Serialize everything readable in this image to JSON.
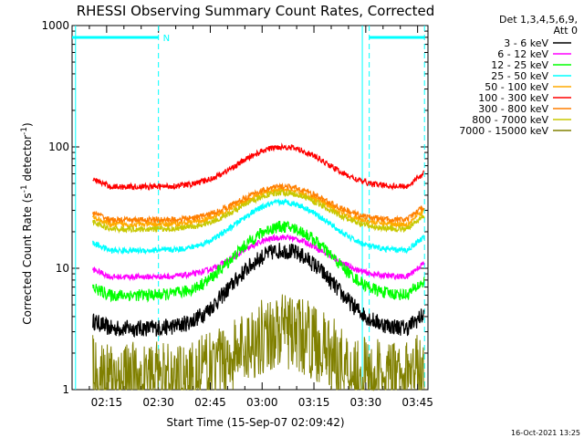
{
  "chart_data": {
    "type": "line",
    "title": "RHESSI Observing Summary Count Rates, Corrected",
    "xlabel": "Start Time (15-Sep-07 02:09:42)",
    "ylabel_parts": {
      "base": "Corrected Count Rate (s",
      "exp1": "-1",
      "mid": " detector",
      "exp2": "-1",
      "end": ")"
    },
    "y_scale": "log",
    "ylim": [
      1,
      1000
    ],
    "xlim_minutes": [
      125,
      228
    ],
    "y_ticks": [
      {
        "value": 1,
        "label": "1"
      },
      {
        "value": 10,
        "label": "10"
      },
      {
        "value": 100,
        "label": "100"
      },
      {
        "value": 1000,
        "label": "1000"
      }
    ],
    "x_ticks": [
      {
        "value": 135,
        "label": "02:15"
      },
      {
        "value": 150,
        "label": "02:30"
      },
      {
        "value": 165,
        "label": "02:45"
      },
      {
        "value": 180,
        "label": "03:00"
      },
      {
        "value": 195,
        "label": "03:15"
      },
      {
        "value": 210,
        "label": "03:30"
      },
      {
        "value": 225,
        "label": "03:45"
      }
    ],
    "legend_header": [
      "Det 1,3,4,5,6,9,",
      "Att 0"
    ],
    "legend_position": "right, outside plot",
    "flare_peak_time": "03:06",
    "series": [
      {
        "name": "3 - 6 keV",
        "color": "#000000",
        "base": 3.2,
        "peak": 14
      },
      {
        "name": "6 - 12 keV",
        "color": "#ff00ff",
        "base": 8.5,
        "peak": 18
      },
      {
        "name": "12 - 25 keV",
        "color": "#00ff00",
        "base": 6,
        "peak": 22
      },
      {
        "name": "25 - 50 keV",
        "color": "#00ffff",
        "base": 14,
        "peak": 35
      },
      {
        "name": "50 - 100 keV",
        "color": "#ffaa00",
        "base": 23,
        "peak": 44
      },
      {
        "name": "100 - 300 keV",
        "color": "#ff0000",
        "base": 47,
        "peak": 100
      },
      {
        "name": "300 - 800 keV",
        "color": "#ff7f00",
        "base": 25,
        "peak": 47
      },
      {
        "name": "800 - 7000 keV",
        "color": "#c8c800",
        "base": 21,
        "peak": 42
      },
      {
        "name": "7000 - 15000 keV",
        "color": "#808000",
        "base": 1.2,
        "peak": 3
      }
    ],
    "night_markers": {
      "color": "#00ffff",
      "night_intervals": [
        [
          125,
          150
        ],
        [
          211,
          227
        ]
      ],
      "marker_label": "N",
      "dashed_lines": [
        150,
        211,
        227
      ],
      "solid_lines": [
        126,
        209
      ]
    },
    "footer_timestamp": "16-Oct-2021 13:25"
  }
}
